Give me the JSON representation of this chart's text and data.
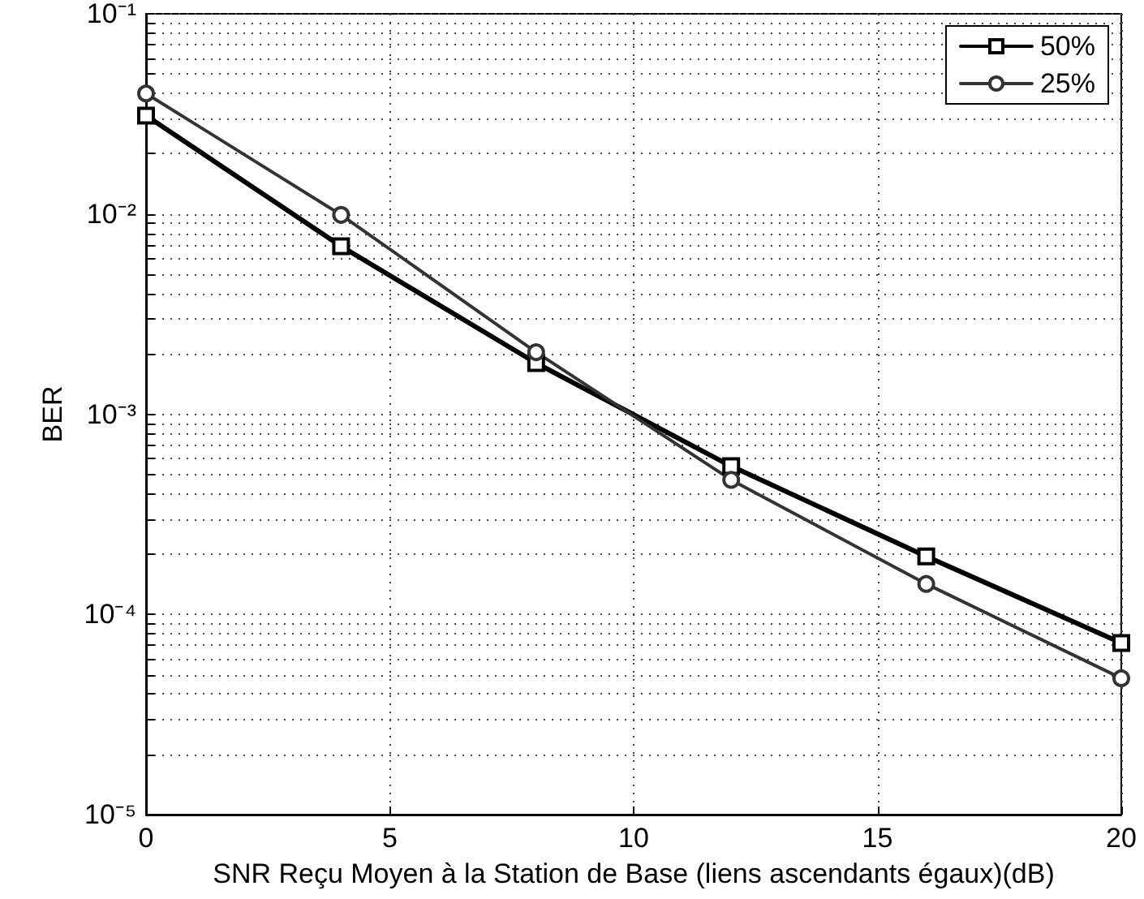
{
  "chart_data": {
    "type": "line",
    "xlabel": "SNR Reçu Moyen à la Station de Base (liens ascendants égaux)(dB)",
    "ylabel": "BER",
    "x": [
      0,
      4,
      8,
      12,
      16,
      20
    ],
    "series": [
      {
        "name": "50%",
        "color": "#000000",
        "marker": "square",
        "values": [
          0.031,
          0.0069,
          0.0018,
          0.00055,
          0.000195,
          7.2e-05
        ]
      },
      {
        "name": "25%",
        "color": "#333333",
        "marker": "circle",
        "values": [
          0.04,
          0.0099,
          0.00204,
          0.00047,
          0.000142,
          4.8e-05
        ]
      }
    ],
    "xlim": [
      0,
      20
    ],
    "xticks": [
      0,
      5,
      10,
      15,
      20
    ],
    "ylim": [
      1e-05,
      0.1
    ],
    "yticks": [
      {
        "value": 1e-05,
        "label": "10⁻⁵"
      },
      {
        "value": 2e-05,
        "label": null
      },
      {
        "value": 3e-05,
        "label": null
      },
      {
        "value": 4e-05,
        "label": null
      },
      {
        "value": 5e-05,
        "label": null
      },
      {
        "value": 6e-05,
        "label": null
      },
      {
        "value": 7e-05,
        "label": null
      },
      {
        "value": 8e-05,
        "label": null
      },
      {
        "value": 9e-05,
        "label": null
      },
      {
        "value": 0.0001,
        "label": "10⁻⁴"
      },
      {
        "value": 0.0002,
        "label": null
      },
      {
        "value": 0.0003,
        "label": null
      },
      {
        "value": 0.0004,
        "label": null
      },
      {
        "value": 0.0005,
        "label": null
      },
      {
        "value": 0.0006,
        "label": null
      },
      {
        "value": 0.0007,
        "label": null
      },
      {
        "value": 0.0008,
        "label": null
      },
      {
        "value": 0.0009,
        "label": null
      },
      {
        "value": 0.001,
        "label": "10⁻³"
      },
      {
        "value": 0.002,
        "label": null
      },
      {
        "value": 0.003,
        "label": null
      },
      {
        "value": 0.004,
        "label": null
      },
      {
        "value": 0.005,
        "label": null
      },
      {
        "value": 0.006,
        "label": null
      },
      {
        "value": 0.007,
        "label": null
      },
      {
        "value": 0.008,
        "label": null
      },
      {
        "value": 0.009,
        "label": null
      },
      {
        "value": 0.01,
        "label": "10⁻²"
      },
      {
        "value": 0.02,
        "label": null
      },
      {
        "value": 0.03,
        "label": null
      },
      {
        "value": 0.04,
        "label": null
      },
      {
        "value": 0.05,
        "label": null
      },
      {
        "value": 0.06,
        "label": null
      },
      {
        "value": 0.07,
        "label": null
      },
      {
        "value": 0.08,
        "label": null
      },
      {
        "value": 0.09,
        "label": null
      },
      {
        "value": 0.1,
        "label": "10⁻¹"
      }
    ],
    "log": "y",
    "grid": true,
    "legend": "top right",
    "line_style": "solid"
  }
}
